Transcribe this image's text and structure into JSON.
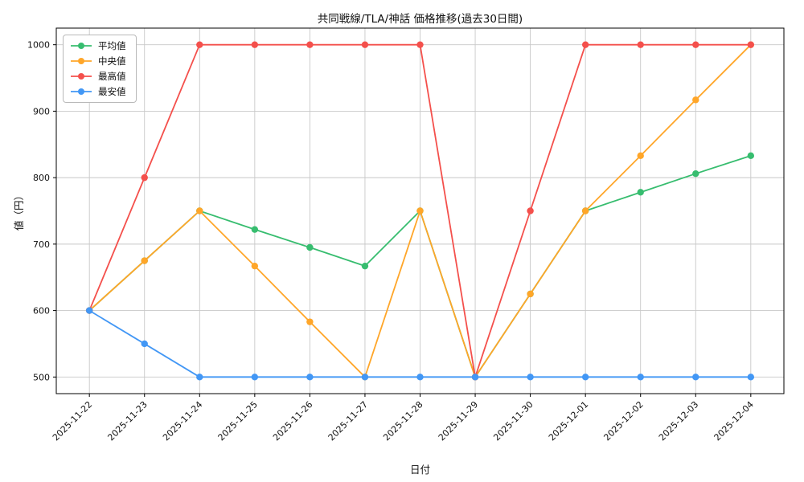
{
  "chart_data": {
    "type": "line",
    "title": "共同戦線/TLA/神話 価格推移(過去30日間)",
    "xlabel": "日付",
    "ylabel": "値（円）",
    "x": [
      "2025-11-22",
      "2025-11-23",
      "2025-11-24",
      "2025-11-25",
      "2025-11-26",
      "2025-11-27",
      "2025-11-28",
      "2025-11-29",
      "2025-11-30",
      "2025-12-01",
      "2025-12-02",
      "2025-12-03",
      "2025-12-04"
    ],
    "yticks": [
      500,
      600,
      700,
      800,
      900,
      1000
    ],
    "ylim": [
      475,
      1025
    ],
    "grid": true,
    "legend_position": "upper left",
    "series": [
      {
        "name": "平均値",
        "color": "#37bd6f",
        "values": [
          600,
          675,
          750,
          722,
          695,
          667,
          750,
          500,
          625,
          750,
          778,
          806,
          833
        ]
      },
      {
        "name": "中央値",
        "color": "#ffa629",
        "values": [
          600,
          675,
          750,
          667,
          583,
          500,
          750,
          500,
          625,
          750,
          833,
          917,
          1000
        ]
      },
      {
        "name": "最高値",
        "color": "#f4504c",
        "values": [
          600,
          800,
          1000,
          1000,
          1000,
          1000,
          1000,
          500,
          750,
          1000,
          1000,
          1000,
          1000
        ]
      },
      {
        "name": "最安値",
        "color": "#4297f5",
        "values": [
          600,
          550,
          500,
          500,
          500,
          500,
          500,
          500,
          500,
          500,
          500,
          500,
          500
        ]
      }
    ]
  }
}
